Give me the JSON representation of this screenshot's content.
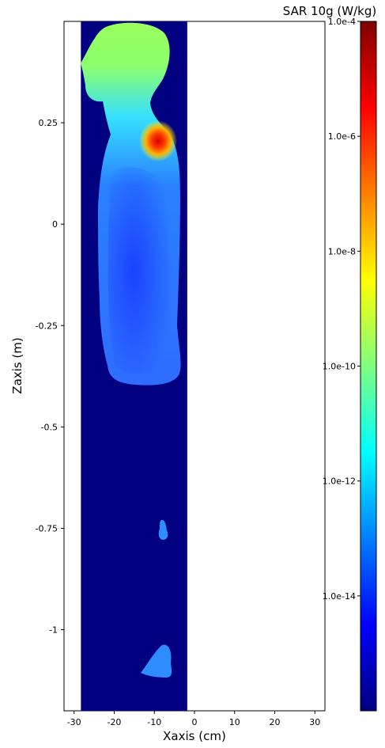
{
  "chart_data": {
    "type": "heatmap",
    "title": "",
    "xlabel": "Xaxis (cm)",
    "ylabel": "Zaxis (m)",
    "colorbar_label": "SAR 10g (W/kg)",
    "colormap": "jet",
    "x_ticks": [
      -30,
      -20,
      -10,
      0,
      10,
      20,
      30
    ],
    "x_tick_labels": [
      "-30",
      "-20",
      "-10",
      "0",
      "10",
      "20",
      "30"
    ],
    "y_ticks": [
      0.25,
      0,
      -0.25,
      -0.5,
      -0.75,
      -1
    ],
    "y_tick_labels": [
      "0.25",
      "0",
      "-0.25",
      "-0.5",
      "-0.75",
      "-1"
    ],
    "xlim": [
      -32.5,
      32.5
    ],
    "ylim": [
      -1.2,
      0.5
    ],
    "data_extent_x": [
      -28.3,
      -1.8
    ],
    "data_extent_z": [
      -1.2,
      0.5
    ],
    "colorbar_scale": "log",
    "colorbar_range": [
      1e-16,
      0.0001
    ],
    "colorbar_ticks": [
      0.0001,
      1e-06,
      1e-08,
      1e-10,
      1e-12,
      1e-14
    ],
    "colorbar_tick_labels": [
      "1.0e-4",
      "1.0e-6",
      "1.0e-8",
      "1.0e-10",
      "1.0e-12",
      "1.0e-14"
    ],
    "background_color": "#000080",
    "regions": [
      {
        "name": "head",
        "sar_approx": 3e-09
      },
      {
        "name": "neck-shoulder hotspot",
        "sar_approx": 1e-05
      },
      {
        "name": "torso",
        "sar_approx": 1e-12
      },
      {
        "name": "lower body",
        "sar_approx": 1e-12
      }
    ]
  }
}
